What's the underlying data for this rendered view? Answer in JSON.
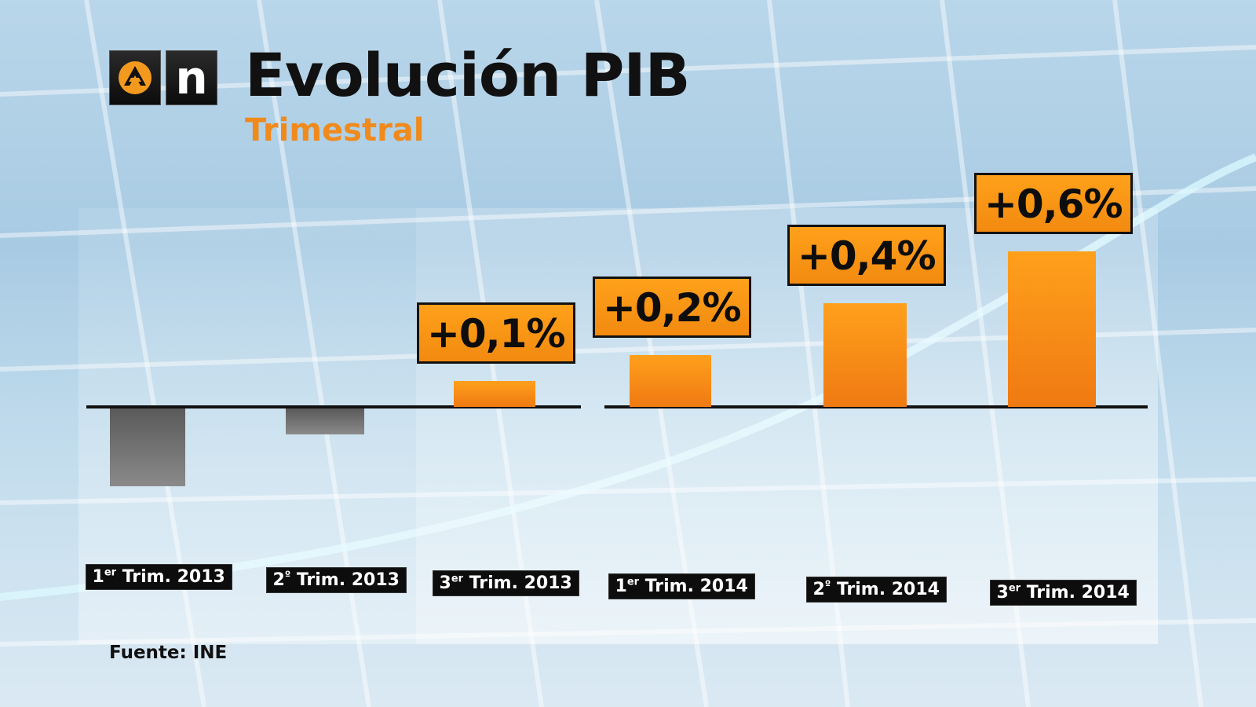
{
  "title": "Evolución PIB",
  "subtitle": "Trimestral",
  "source": "Fuente: INE",
  "logo": {
    "letter": "n",
    "icons": [
      "antena3-logo-icon",
      "n-logo-icon"
    ]
  },
  "colors": {
    "positive": "#f4881a",
    "negative": "#7a7a7a",
    "accent": "#f08a1c"
  },
  "chart_data": {
    "type": "bar",
    "title": "Evolución PIB",
    "subtitle": "Trimestral",
    "categories": [
      {
        "ord": "1",
        "sup": "er",
        "rest": " Trim. 2013"
      },
      {
        "ord": "2",
        "sup": "º",
        "rest": " Trim. 2013"
      },
      {
        "ord": "3",
        "sup": "er",
        "rest": " Trim. 2013"
      },
      {
        "ord": "1",
        "sup": "er",
        "rest": " Trim. 2014"
      },
      {
        "ord": "2",
        "sup": "º",
        "rest": " Trim. 2014"
      },
      {
        "ord": "3",
        "sup": "er",
        "rest": " Trim. 2014"
      }
    ],
    "values": [
      -0.3,
      -0.1,
      0.1,
      0.2,
      0.4,
      0.6
    ],
    "data_labels": [
      "",
      "",
      "+0,1%",
      "+0,2%",
      "+0,4%",
      "+0,6%"
    ],
    "unit": "%",
    "source": "Fuente: INE"
  }
}
